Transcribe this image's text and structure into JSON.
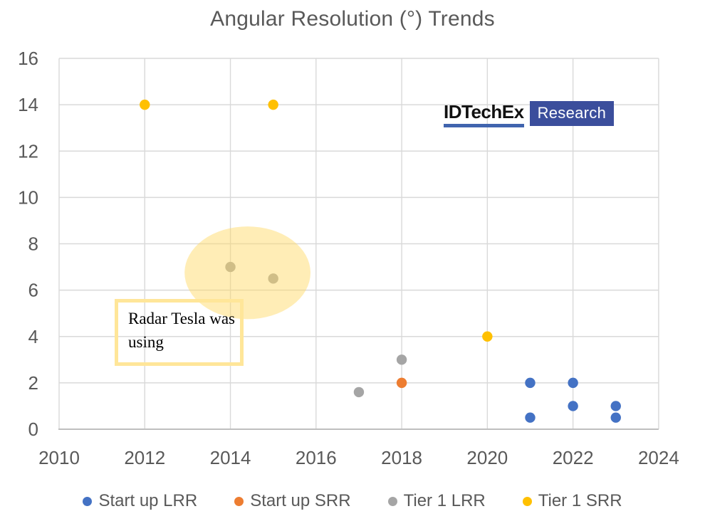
{
  "title": "Angular Resolution (°) Trends",
  "logo": {
    "name": "IDTechEx",
    "badge": "Research"
  },
  "annotation": {
    "text": "Radar Tesla was using"
  },
  "colors": {
    "grid": "#D9D9D9",
    "axis": "#BFBFBF",
    "text": "#595959",
    "logo_underline": "#4064AE",
    "logo_badge_bg": "#3B4E9C",
    "annotation_border": "#FFE699",
    "highlight_fill": "#FFD966"
  },
  "chart_data": {
    "type": "scatter",
    "title": "Angular Resolution (°) Trends",
    "xlabel": "",
    "ylabel": "",
    "xlim": [
      2010,
      2024
    ],
    "ylim": [
      0,
      16
    ],
    "x_ticks": [
      2010,
      2012,
      2014,
      2016,
      2018,
      2020,
      2022,
      2024
    ],
    "y_ticks": [
      0,
      2,
      4,
      6,
      8,
      10,
      12,
      14,
      16
    ],
    "grid": true,
    "legend_position": "bottom",
    "series": [
      {
        "name": "Start up LRR",
        "color": "#4472C4",
        "points": [
          [
            2021,
            2
          ],
          [
            2021,
            0.5
          ],
          [
            2022,
            2
          ],
          [
            2022,
            1
          ],
          [
            2023,
            1
          ],
          [
            2023,
            0.5
          ]
        ]
      },
      {
        "name": "Start up SRR",
        "color": "#ED7D31",
        "points": [
          [
            2018,
            2
          ]
        ]
      },
      {
        "name": "Tier 1 LRR",
        "color": "#A5A5A5",
        "points": [
          [
            2014,
            7
          ],
          [
            2015,
            6.5
          ],
          [
            2017,
            1.6
          ],
          [
            2018,
            3
          ]
        ]
      },
      {
        "name": "Tier 1 SRR",
        "color": "#FFC000",
        "points": [
          [
            2012,
            14
          ],
          [
            2015,
            14
          ],
          [
            2020,
            4
          ]
        ]
      }
    ],
    "highlight_ellipse": {
      "cx": 2014.4,
      "cy": 6.75,
      "rx_years": 1.47,
      "ry_units": 2.0,
      "note": "highlights Tier 1 LRR points at 2014 and 2015",
      "opacity": 0.48
    }
  }
}
